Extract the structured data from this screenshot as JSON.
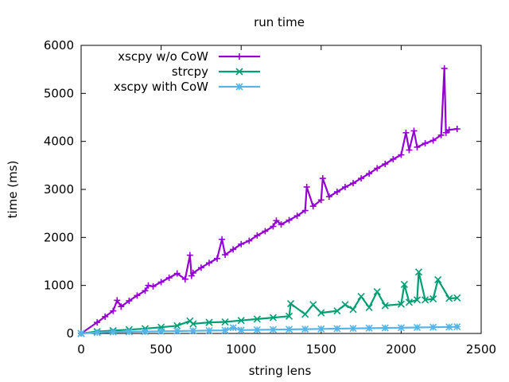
{
  "chart_data": {
    "type": "line",
    "title": "run time",
    "xlabel": "string lens",
    "ylabel": "time (ms)",
    "xlim": [
      0,
      2500
    ],
    "ylim": [
      0,
      6000
    ],
    "xticks": [
      0,
      500,
      1000,
      1500,
      2000,
      2500
    ],
    "yticks": [
      0,
      1000,
      2000,
      3000,
      4000,
      5000,
      6000
    ],
    "grid": false,
    "legend": "top-left",
    "series": [
      {
        "name": "xscpy w/o CoW",
        "color": "#9400d3",
        "marker": "plus",
        "x": [
          0,
          100,
          150,
          200,
          225,
          250,
          300,
          350,
          400,
          420,
          450,
          500,
          550,
          600,
          650,
          680,
          690,
          700,
          750,
          800,
          850,
          880,
          900,
          950,
          1000,
          1050,
          1100,
          1150,
          1200,
          1220,
          1250,
          1300,
          1350,
          1400,
          1410,
          1450,
          1500,
          1510,
          1550,
          1600,
          1650,
          1700,
          1750,
          1800,
          1850,
          1900,
          1950,
          2000,
          2030,
          2050,
          2080,
          2100,
          2150,
          2200,
          2250,
          2270,
          2280,
          2300,
          2350
        ],
        "values": [
          0,
          230,
          350,
          470,
          690,
          560,
          680,
          790,
          890,
          1000,
          980,
          1070,
          1160,
          1250,
          1130,
          1630,
          1200,
          1260,
          1370,
          1470,
          1560,
          1960,
          1640,
          1750,
          1860,
          1930,
          2040,
          2130,
          2230,
          2350,
          2270,
          2360,
          2450,
          2560,
          3050,
          2650,
          2780,
          3230,
          2850,
          2950,
          3050,
          3130,
          3230,
          3330,
          3440,
          3530,
          3630,
          3720,
          4180,
          3820,
          4220,
          3880,
          3960,
          4020,
          4130,
          5520,
          4180,
          4240,
          4260
        ]
      },
      {
        "name": "strcpy",
        "color": "#009e73",
        "marker": "x",
        "x": [
          0,
          100,
          200,
          300,
          400,
          500,
          600,
          680,
          700,
          800,
          900,
          1000,
          1100,
          1200,
          1300,
          1310,
          1400,
          1450,
          1500,
          1600,
          1650,
          1700,
          1750,
          1800,
          1850,
          1900,
          2000,
          2020,
          2050,
          2100,
          2110,
          2150,
          2200,
          2230,
          2300,
          2350
        ],
        "values": [
          0,
          40,
          60,
          80,
          100,
          130,
          160,
          260,
          200,
          230,
          240,
          270,
          300,
          330,
          360,
          620,
          400,
          600,
          430,
          470,
          600,
          500,
          770,
          540,
          870,
          580,
          610,
          1020,
          650,
          700,
          1280,
          700,
          720,
          1120,
          730,
          740
        ]
      },
      {
        "name": "xscpy with CoW",
        "color": "#56b4e9",
        "marker": "star",
        "x": [
          0,
          100,
          200,
          300,
          400,
          500,
          600,
          700,
          800,
          900,
          950,
          1000,
          1100,
          1200,
          1300,
          1400,
          1500,
          1600,
          1700,
          1800,
          1900,
          2000,
          2100,
          2200,
          2300,
          2350
        ],
        "values": [
          0,
          20,
          30,
          35,
          40,
          45,
          50,
          55,
          60,
          65,
          120,
          70,
          75,
          80,
          85,
          90,
          95,
          100,
          105,
          110,
          115,
          120,
          125,
          130,
          135,
          140
        ]
      }
    ]
  }
}
